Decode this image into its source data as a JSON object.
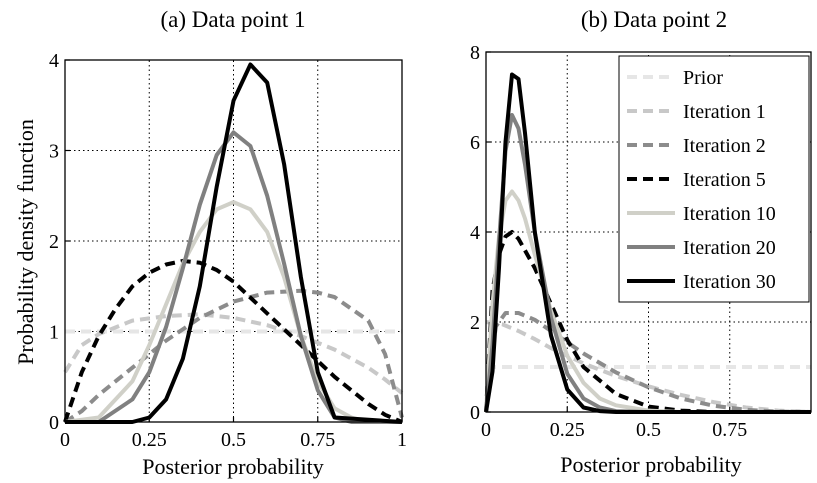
{
  "chart_data": [
    {
      "type": "line",
      "title": "(a) Data point 1",
      "xlabel": "Posterior probability",
      "ylabel": "Probability density function",
      "xlim": [
        0,
        1
      ],
      "ylim": [
        0,
        4
      ],
      "xticks": [
        0,
        0.25,
        0.5,
        0.75,
        1
      ],
      "xtick_labels": [
        "0",
        "0.25",
        "0.5",
        "0.75",
        "1"
      ],
      "yticks": [
        0,
        1,
        2,
        3,
        4
      ],
      "ytick_labels": [
        "0",
        "1",
        "2",
        "3",
        "4"
      ],
      "grid": true,
      "series": [
        {
          "key": "prior",
          "color": "#e6e6e6",
          "dash": true,
          "x": [
            0,
            0.1,
            0.2,
            0.3,
            0.4,
            0.5,
            0.6,
            0.7,
            0.8,
            0.9,
            1
          ],
          "y": [
            1,
            1,
            1,
            1,
            1,
            1,
            1,
            1,
            1,
            1,
            1
          ]
        },
        {
          "key": "it1",
          "color": "#c8c8c8",
          "dash": true,
          "x": [
            0,
            0.05,
            0.1,
            0.2,
            0.3,
            0.4,
            0.5,
            0.6,
            0.7,
            0.8,
            0.9,
            0.95,
            1
          ],
          "y": [
            0.55,
            0.85,
            0.97,
            1.12,
            1.17,
            1.19,
            1.15,
            1.07,
            0.95,
            0.8,
            0.6,
            0.47,
            0.32
          ]
        },
        {
          "key": "it2",
          "color": "#8c8c8c",
          "dash": true,
          "x": [
            0,
            0.05,
            0.1,
            0.2,
            0.3,
            0.4,
            0.5,
            0.6,
            0.7,
            0.75,
            0.8,
            0.9,
            0.95,
            1
          ],
          "y": [
            0,
            0.12,
            0.3,
            0.6,
            0.9,
            1.15,
            1.33,
            1.43,
            1.45,
            1.43,
            1.38,
            1.12,
            0.75,
            0.05
          ]
        },
        {
          "key": "it5",
          "color": "#000000",
          "dash": true,
          "x": [
            0,
            0.05,
            0.1,
            0.15,
            0.2,
            0.25,
            0.3,
            0.35,
            0.4,
            0.45,
            0.5,
            0.6,
            0.7,
            0.8,
            0.9,
            0.95,
            1
          ],
          "y": [
            0,
            0.55,
            0.95,
            1.25,
            1.5,
            1.65,
            1.74,
            1.78,
            1.76,
            1.68,
            1.55,
            1.2,
            0.85,
            0.5,
            0.2,
            0.08,
            0
          ]
        },
        {
          "key": "it10",
          "color": "#d0d0c8",
          "dash": false,
          "x": [
            0,
            0.1,
            0.2,
            0.25,
            0.3,
            0.35,
            0.4,
            0.45,
            0.5,
            0.55,
            0.6,
            0.65,
            0.7,
            0.75,
            0.8,
            0.85,
            0.9,
            1
          ],
          "y": [
            0,
            0.05,
            0.45,
            0.85,
            1.3,
            1.75,
            2.1,
            2.35,
            2.43,
            2.35,
            2.1,
            1.6,
            0.95,
            0.45,
            0.15,
            0.05,
            0,
            0
          ]
        },
        {
          "key": "it20",
          "color": "#808080",
          "dash": false,
          "x": [
            0,
            0.1,
            0.2,
            0.25,
            0.3,
            0.35,
            0.4,
            0.45,
            0.5,
            0.55,
            0.6,
            0.65,
            0.7,
            0.75,
            0.8,
            0.85,
            1
          ],
          "y": [
            0,
            0,
            0.25,
            0.55,
            1.05,
            1.7,
            2.4,
            2.95,
            3.2,
            3.05,
            2.5,
            1.75,
            0.95,
            0.35,
            0.05,
            0,
            0
          ]
        },
        {
          "key": "it30",
          "color": "#000000",
          "dash": false,
          "x": [
            0,
            0.2,
            0.25,
            0.3,
            0.35,
            0.4,
            0.45,
            0.5,
            0.55,
            0.6,
            0.65,
            0.7,
            0.75,
            0.8,
            1
          ],
          "y": [
            0,
            0,
            0.05,
            0.25,
            0.7,
            1.5,
            2.6,
            3.55,
            3.95,
            3.75,
            2.85,
            1.6,
            0.55,
            0.05,
            0
          ]
        }
      ]
    },
    {
      "type": "line",
      "title": "(b) Data point 2",
      "xlabel": "Posterior probability",
      "ylabel": "",
      "xlim": [
        0,
        1
      ],
      "ylim": [
        0,
        8
      ],
      "xticks": [
        0,
        0.25,
        0.5,
        0.75
      ],
      "xtick_labels": [
        "0",
        "0.25",
        "0.5",
        "0.75"
      ],
      "yticks": [
        0,
        2,
        4,
        6,
        8
      ],
      "ytick_labels": [
        "0",
        "2",
        "4",
        "6",
        "8"
      ],
      "grid": true,
      "legend_placement": "top-right",
      "series": [
        {
          "key": "prior",
          "name": "Prior",
          "color": "#e6e6e6",
          "dash": true,
          "x": [
            0,
            0.2,
            0.4,
            0.6,
            0.8,
            1
          ],
          "y": [
            1,
            1,
            1,
            1,
            1,
            1
          ]
        },
        {
          "key": "it1",
          "name": "Iteration 1",
          "color": "#c8c8c8",
          "dash": true,
          "x": [
            0,
            0.05,
            0.1,
            0.15,
            0.2,
            0.3,
            0.4,
            0.5,
            0.6,
            0.7,
            0.8,
            0.9,
            1
          ],
          "y": [
            2.0,
            1.95,
            1.8,
            1.62,
            1.42,
            1.08,
            0.8,
            0.57,
            0.38,
            0.22,
            0.1,
            0.03,
            0
          ]
        },
        {
          "key": "it2",
          "name": "Iteration 2",
          "color": "#8c8c8c",
          "dash": true,
          "x": [
            0,
            0.03,
            0.06,
            0.1,
            0.15,
            0.2,
            0.3,
            0.4,
            0.5,
            0.6,
            0.7,
            0.8,
            0.9,
            1
          ],
          "y": [
            0,
            1.9,
            2.2,
            2.2,
            2.05,
            1.8,
            1.3,
            0.88,
            0.55,
            0.3,
            0.14,
            0.05,
            0.01,
            0
          ]
        },
        {
          "key": "it5",
          "name": "Iteration 5",
          "color": "#000000",
          "dash": true,
          "x": [
            0,
            0.02,
            0.04,
            0.06,
            0.08,
            0.1,
            0.15,
            0.2,
            0.25,
            0.3,
            0.4,
            0.5,
            0.6,
            0.7,
            1
          ],
          "y": [
            0,
            2.7,
            3.5,
            3.9,
            4.0,
            3.85,
            3.2,
            2.4,
            1.6,
            1.0,
            0.4,
            0.12,
            0.03,
            0,
            0
          ]
        },
        {
          "key": "it10",
          "name": "Iteration 10",
          "color": "#d0d0c8",
          "dash": false,
          "x": [
            0,
            0.02,
            0.04,
            0.06,
            0.08,
            0.1,
            0.12,
            0.15,
            0.2,
            0.25,
            0.3,
            0.35,
            0.4,
            0.5,
            0.6,
            1
          ],
          "y": [
            0,
            2.4,
            3.9,
            4.7,
            4.9,
            4.7,
            4.3,
            3.5,
            2.25,
            1.25,
            0.65,
            0.3,
            0.15,
            0.03,
            0,
            0
          ]
        },
        {
          "key": "it20",
          "name": "Iteration 20",
          "color": "#808080",
          "dash": false,
          "x": [
            0,
            0.02,
            0.04,
            0.06,
            0.08,
            0.1,
            0.12,
            0.15,
            0.2,
            0.25,
            0.3,
            0.35,
            0.4,
            0.5,
            1
          ],
          "y": [
            0,
            1.5,
            3.8,
            5.8,
            6.6,
            6.3,
            5.5,
            4.0,
            2.1,
            0.85,
            0.3,
            0.1,
            0.02,
            0,
            0
          ]
        },
        {
          "key": "it30",
          "name": "Iteration 30",
          "color": "#000000",
          "dash": false,
          "x": [
            0,
            0.02,
            0.04,
            0.06,
            0.08,
            0.1,
            0.12,
            0.15,
            0.2,
            0.25,
            0.3,
            0.35,
            0.4,
            1
          ],
          "y": [
            0,
            0.9,
            3.2,
            6.0,
            7.5,
            7.4,
            6.2,
            4.0,
            1.7,
            0.5,
            0.1,
            0.02,
            0,
            0
          ]
        }
      ]
    }
  ]
}
